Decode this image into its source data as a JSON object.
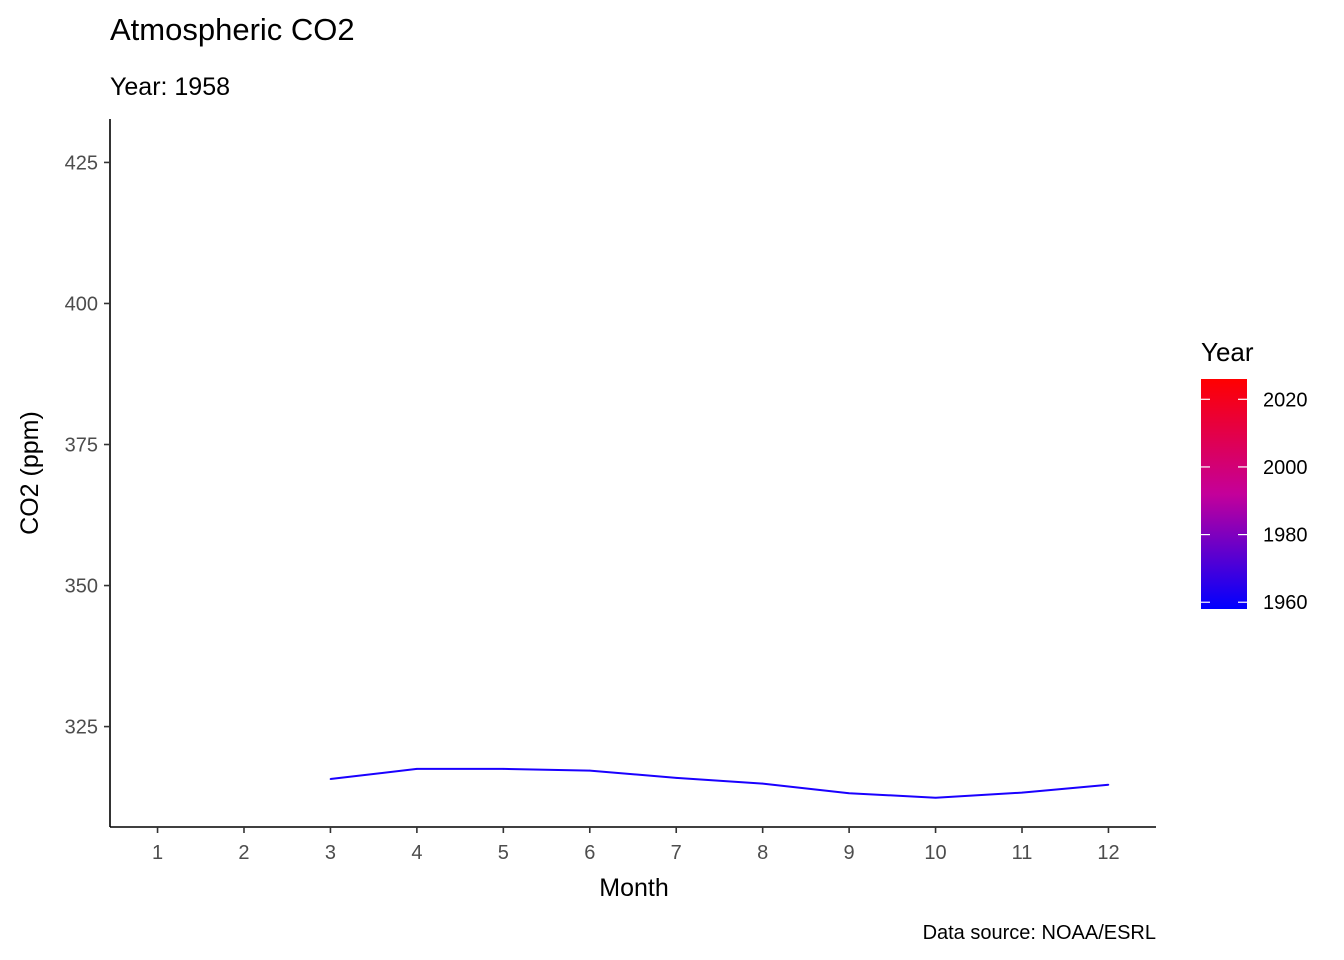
{
  "chart_data": {
    "type": "line",
    "title": "Atmospheric CO2",
    "subtitle": "Year: 1958",
    "xlabel": "Month",
    "ylabel": "CO2 (ppm)",
    "caption": "Data source: NOAA/ESRL",
    "x_ticks": [
      1,
      2,
      3,
      4,
      5,
      6,
      7,
      8,
      9,
      10,
      11,
      12
    ],
    "y_ticks": [
      325,
      350,
      375,
      400,
      425
    ],
    "xlim": [
      0.45,
      12.55
    ],
    "ylim": [
      307.2,
      432.7
    ],
    "grid": false,
    "series": [
      {
        "year": 1958,
        "color": "#1a00ff",
        "x": [
          3,
          4,
          5,
          6,
          7,
          8,
          9,
          10,
          11,
          12
        ],
        "y": [
          315.7,
          317.5,
          317.5,
          317.2,
          315.9,
          314.9,
          313.2,
          312.4,
          313.3,
          314.7
        ]
      }
    ],
    "legend": {
      "title": "Year",
      "position": "right",
      "type": "colorbar",
      "range": [
        1958,
        2026
      ],
      "labels": [
        2020,
        2000,
        1980,
        1960
      ],
      "low_color": "#0000ff",
      "high_color": "#ff0000"
    }
  }
}
